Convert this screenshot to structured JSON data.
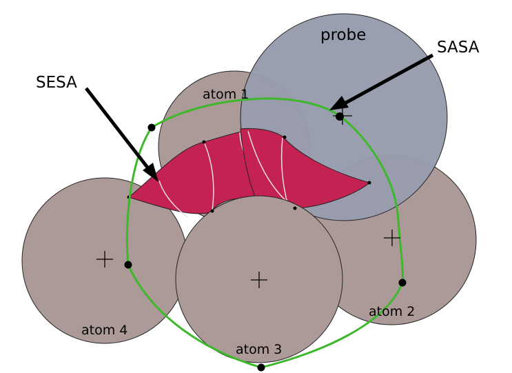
{
  "labels": {
    "probe": "probe",
    "sasa": "SASA",
    "sesa": "SESA",
    "atom1": "atom 1",
    "atom2": "atom 2",
    "atom3": "atom 3",
    "atom4": "atom 4"
  },
  "colors": {
    "atom_fill": "#ac9a98",
    "probe_fill": "#979cac",
    "sesa_fill": "#c42252",
    "sasa_curve": "#3cb82a",
    "outline": "#222222"
  }
}
